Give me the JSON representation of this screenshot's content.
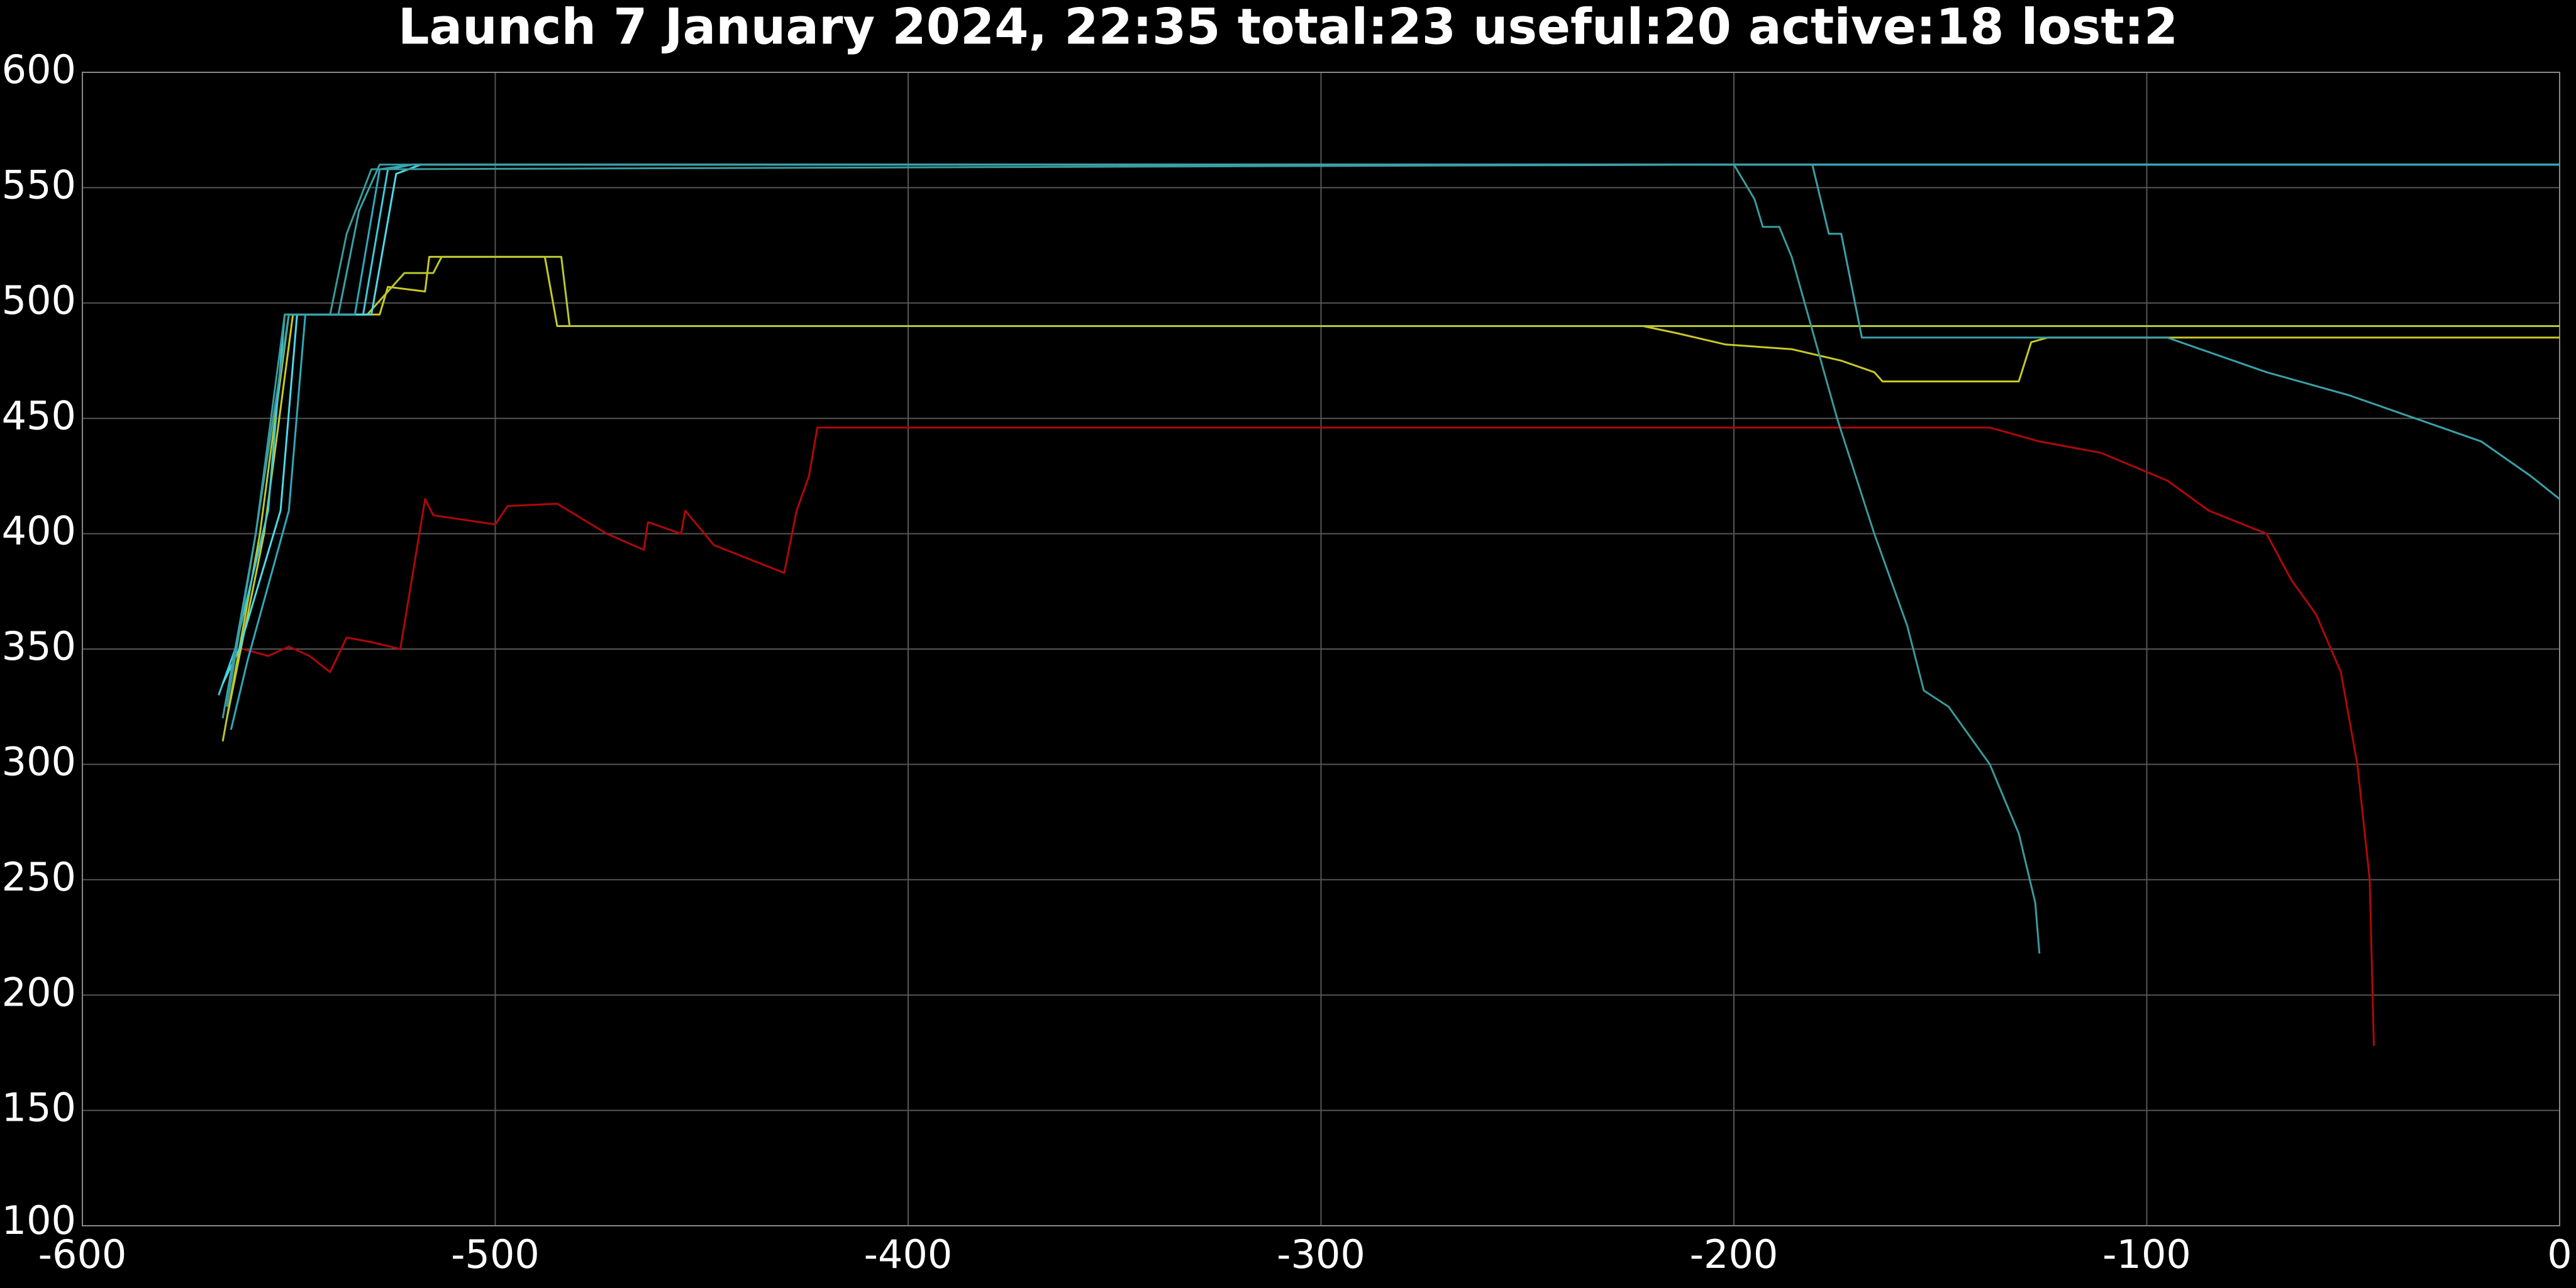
{
  "chart_data": {
    "type": "line",
    "title": "Launch 7 January 2024, 22:35 total:23 useful:20 active:18 lost:2",
    "xlim": [
      -600,
      0
    ],
    "xticks": [
      -600,
      -500,
      -400,
      -300,
      -200,
      -100,
      0
    ],
    "ylim": [
      100,
      600
    ],
    "yticks": [
      100,
      150,
      200,
      250,
      300,
      350,
      400,
      450,
      500,
      550,
      600
    ],
    "grid": true,
    "series": [
      {
        "color": "#b00808",
        "x": [
          -561,
          -555,
          -550,
          -545,
          -540,
          -536,
          -530,
          -523,
          -517,
          -515,
          -500,
          -497,
          -485,
          -473,
          -464,
          -463,
          -455,
          -454,
          -447,
          -430,
          -427,
          -424,
          -422,
          -138,
          -126,
          -111,
          -95,
          -85,
          -71,
          -65,
          -59,
          -53,
          -49,
          -46,
          -45
        ],
        "values": [
          350,
          347,
          351,
          347,
          340,
          355,
          353,
          350,
          415,
          408,
          404,
          412,
          413,
          400,
          393,
          405,
          400,
          410,
          395,
          383,
          410,
          425,
          446,
          446,
          440,
          435,
          423,
          410,
          400,
          380,
          365,
          340,
          300,
          250,
          178
        ]
      },
      {
        "color": "#c8c828",
        "x": [
          -565,
          -556,
          -549,
          -528,
          -526,
          -517,
          -516,
          -488,
          -485,
          -222,
          -214,
          -202,
          -186,
          -174,
          -166,
          -164,
          -131,
          -128,
          -124,
          0
        ],
        "values": [
          320,
          400,
          495,
          495,
          507,
          505,
          520,
          520,
          490,
          490,
          487,
          482,
          480,
          475,
          470,
          466,
          466,
          483,
          485,
          485
        ]
      },
      {
        "color": "#b8c830",
        "x": [
          -566,
          -557,
          -550,
          -531,
          -522,
          -515,
          -513,
          -484,
          -482,
          0
        ],
        "values": [
          310,
          400,
          495,
          495,
          513,
          513,
          520,
          520,
          490,
          490
        ]
      },
      {
        "color": "#40c8d8",
        "x": [
          -567,
          -563,
          -555,
          -551,
          -532,
          -526,
          -520,
          0
        ],
        "values": [
          330,
          350,
          410,
          495,
          495,
          558,
          560,
          560
        ]
      },
      {
        "color": "#50d8e8",
        "x": [
          -566,
          -562,
          -552,
          -548,
          -530,
          -524,
          -518,
          0
        ],
        "values": [
          335,
          350,
          410,
          495,
          495,
          556,
          560,
          560
        ]
      },
      {
        "color": "#30a8b8",
        "x": [
          -564,
          -560,
          -550,
          -546,
          -534,
          -528,
          -520,
          0
        ],
        "values": [
          315,
          345,
          410,
          495,
          495,
          558,
          560,
          560
        ]
      },
      {
        "color": "#3a9a9a",
        "x": [
          -565,
          -558,
          -551,
          -540,
          -536,
          -530,
          -200,
          -195,
          -193,
          -189,
          -186,
          -175,
          -166,
          -158,
          -154,
          -148,
          -138,
          -131,
          -127,
          -126
        ],
        "values": [
          325,
          400,
          495,
          495,
          530,
          558,
          560,
          545,
          533,
          533,
          520,
          450,
          400,
          360,
          332,
          325,
          300,
          270,
          240,
          218
        ]
      },
      {
        "color": "#3aa0a8",
        "x": [
          -566,
          -558,
          -550,
          -538,
          -533,
          -528,
          -181,
          -177,
          -174,
          -169,
          -95,
          -87,
          -71,
          -51,
          -35,
          -19,
          -7,
          0
        ],
        "values": [
          320,
          400,
          495,
          495,
          540,
          560,
          560,
          530,
          530,
          485,
          485,
          480,
          470,
          460,
          450,
          440,
          425,
          415
        ]
      }
    ]
  }
}
